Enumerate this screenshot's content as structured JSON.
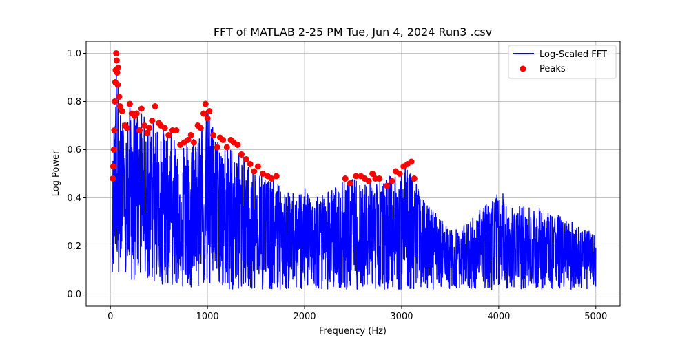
{
  "chart_data": {
    "type": "line",
    "title": "FFT of MATLAB 2-25 PM Tue, Jun 4, 2024 Run3 .csv",
    "xlabel": "Frequency (Hz)",
    "ylabel": "Log Power",
    "xlim": [
      -250,
      5250
    ],
    "ylim": [
      -0.05,
      1.05
    ],
    "xticks": [
      0,
      1000,
      2000,
      3000,
      4000,
      5000
    ],
    "yticks": [
      0.0,
      0.2,
      0.4,
      0.6,
      0.8,
      1.0
    ],
    "grid": true,
    "legend_position": "top-right",
    "series": [
      {
        "name": "Log-Scaled FFT",
        "kind": "line",
        "color": "#0000ff",
        "envelope": {
          "x": [
            20,
            40,
            60,
            80,
            100,
            150,
            200,
            300,
            400,
            500,
            600,
            700,
            800,
            900,
            1000,
            1100,
            1200,
            1300,
            1400,
            1500,
            1600,
            1700,
            1800,
            2000,
            2200,
            2400,
            2500,
            2600,
            2700,
            2800,
            2900,
            3000,
            3100,
            3200,
            3300,
            3400,
            3500,
            3600,
            3800,
            4000,
            4100,
            4200,
            4400,
            4600,
            4800,
            5000
          ],
          "upper": [
            0.48,
            0.8,
            1.0,
            0.88,
            0.76,
            0.7,
            0.78,
            0.76,
            0.72,
            0.72,
            0.68,
            0.66,
            0.64,
            0.7,
            0.78,
            0.65,
            0.63,
            0.6,
            0.56,
            0.52,
            0.5,
            0.48,
            0.42,
            0.44,
            0.42,
            0.47,
            0.48,
            0.48,
            0.49,
            0.47,
            0.5,
            0.53,
            0.55,
            0.4,
            0.36,
            0.32,
            0.27,
            0.27,
            0.35,
            0.43,
            0.4,
            0.37,
            0.36,
            0.33,
            0.3,
            0.24
          ],
          "lower": [
            0.02,
            0.1,
            0.18,
            0.1,
            0.05,
            0.05,
            0.05,
            0.05,
            0.05,
            0.04,
            0.04,
            0.03,
            0.03,
            0.03,
            0.03,
            0.03,
            0.02,
            0.02,
            0.02,
            0.02,
            0.02,
            0.02,
            0.02,
            0.02,
            0.02,
            0.02,
            0.02,
            0.02,
            0.02,
            0.02,
            0.02,
            0.02,
            0.02,
            0.02,
            0.02,
            0.02,
            0.02,
            0.02,
            0.02,
            0.02,
            0.02,
            0.02,
            0.02,
            0.02,
            0.02,
            0.02
          ]
        }
      },
      {
        "name": "Peaks",
        "kind": "scatter",
        "color": "#ff0000",
        "x": [
          25,
          30,
          35,
          40,
          45,
          50,
          55,
          60,
          65,
          70,
          75,
          80,
          90,
          100,
          120,
          150,
          170,
          200,
          220,
          250,
          270,
          300,
          320,
          350,
          380,
          400,
          430,
          460,
          500,
          520,
          560,
          600,
          640,
          680,
          720,
          760,
          800,
          830,
          860,
          900,
          930,
          960,
          980,
          1000,
          1020,
          1060,
          1100,
          1130,
          1160,
          1200,
          1240,
          1270,
          1310,
          1350,
          1400,
          1440,
          1480,
          1520,
          1570,
          1620,
          1660,
          1710,
          2420,
          2470,
          2530,
          2580,
          2620,
          2660,
          2700,
          2730,
          2770,
          2850,
          2900,
          2940,
          2980,
          3020,
          3060,
          3100,
          3130
        ],
        "y": [
          0.48,
          0.53,
          0.6,
          0.68,
          0.8,
          0.88,
          0.93,
          1.0,
          0.97,
          0.92,
          0.87,
          0.94,
          0.82,
          0.78,
          0.76,
          0.7,
          0.69,
          0.79,
          0.75,
          0.74,
          0.75,
          0.68,
          0.77,
          0.7,
          0.67,
          0.69,
          0.72,
          0.78,
          0.71,
          0.7,
          0.69,
          0.66,
          0.68,
          0.68,
          0.62,
          0.63,
          0.64,
          0.66,
          0.63,
          0.7,
          0.69,
          0.75,
          0.79,
          0.73,
          0.76,
          0.66,
          0.61,
          0.65,
          0.64,
          0.61,
          0.64,
          0.63,
          0.62,
          0.58,
          0.56,
          0.54,
          0.51,
          0.53,
          0.5,
          0.49,
          0.48,
          0.49,
          0.48,
          0.46,
          0.49,
          0.49,
          0.48,
          0.47,
          0.5,
          0.48,
          0.48,
          0.45,
          0.47,
          0.51,
          0.5,
          0.53,
          0.54,
          0.55,
          0.48
        ]
      }
    ]
  }
}
